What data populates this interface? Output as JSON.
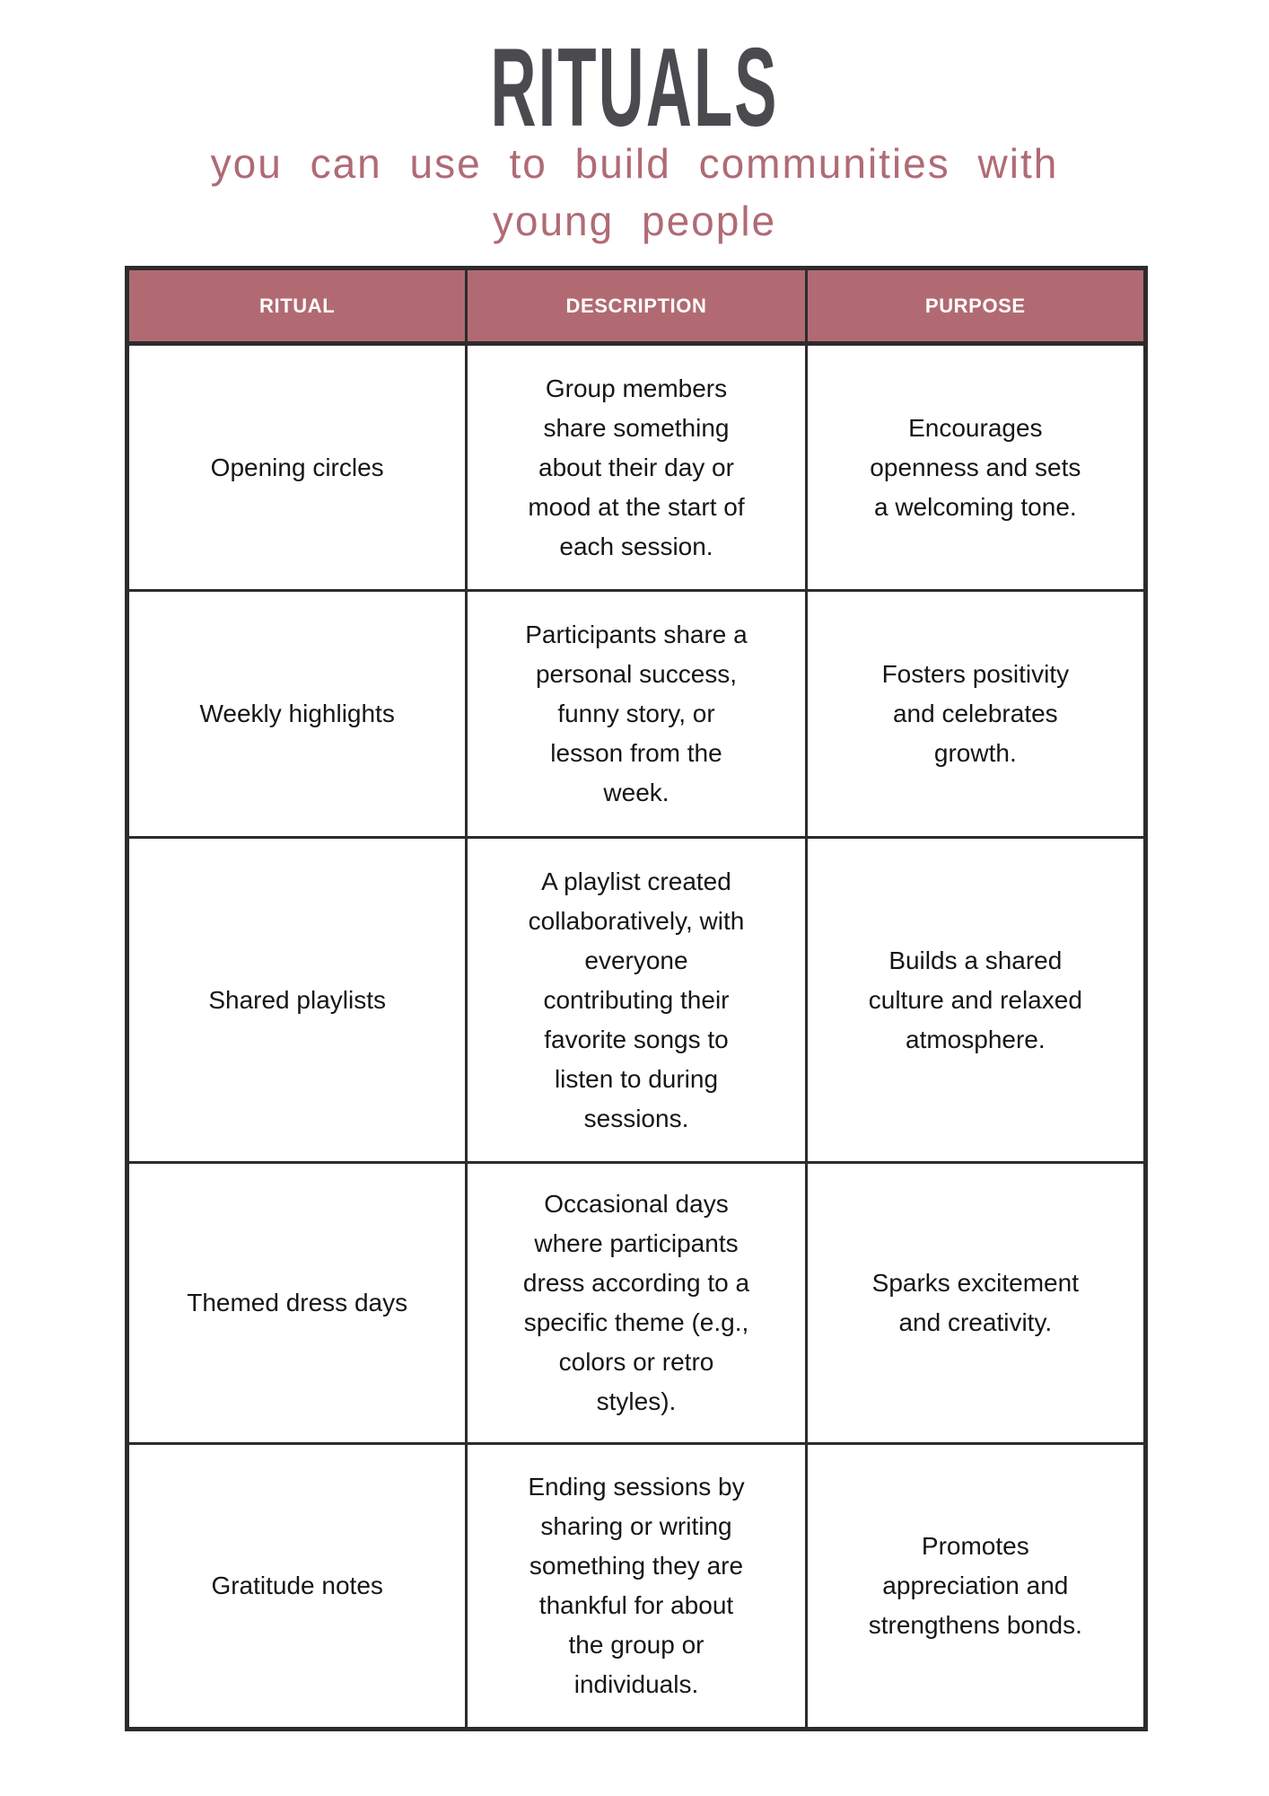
{
  "page": {
    "title": "RITUALS",
    "subtitle_line1": "you can use to build communities with",
    "subtitle_line2": "young people"
  },
  "table": {
    "headers": [
      "RITUAL",
      "DESCRIPTION",
      "PURPOSE"
    ],
    "rows": [
      {
        "ritual": "Opening circles",
        "description": "Group members share something about their day or mood at the start of each session.",
        "purpose": "Encourages openness and sets a welcoming tone."
      },
      {
        "ritual": "Weekly highlights",
        "description": "Participants share a personal success, funny story, or lesson from the week.",
        "purpose": "Fosters positivity and celebrates growth."
      },
      {
        "ritual": "Shared playlists",
        "description": "A playlist created collaboratively, with everyone contributing their favorite songs to listen to during sessions.",
        "purpose": "Builds a shared culture and relaxed atmosphere."
      },
      {
        "ritual": "Themed dress days",
        "description": "Occasional days where participants dress according to a specific theme (e.g., colors or retro styles).",
        "purpose": "Sparks excitement and creativity."
      },
      {
        "ritual": "Gratitude notes",
        "description": "Ending sessions by sharing or writing something they are thankful for about the group or individuals.",
        "purpose": "Promotes appreciation and strengthens bonds."
      }
    ]
  },
  "colors": {
    "header_bg": "#b26a72",
    "title_text": "#4b4a4f",
    "subtitle_text": "#b06b75",
    "border": "#2d2b2d",
    "body_text": "#161616"
  }
}
